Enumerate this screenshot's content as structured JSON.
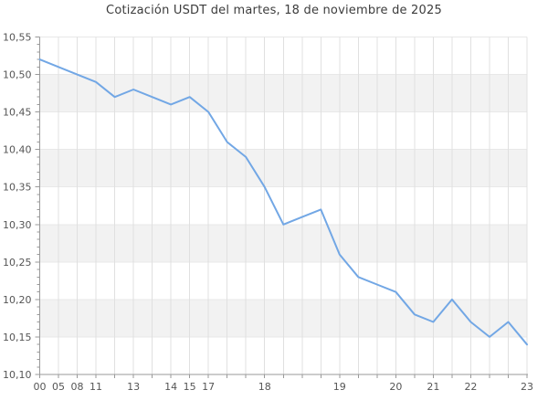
{
  "chart_data": {
    "type": "line",
    "title": "Cotización USDT del martes, 18 de noviembre de 2025",
    "series_name": "USDT",
    "x_tick_labels": [
      "00",
      "05",
      "08",
      "11",
      "",
      "13",
      "",
      "14",
      "15",
      "17",
      "",
      "",
      "18",
      "",
      "",
      "",
      "19",
      "",
      "",
      "20",
      "",
      "21",
      "",
      "22",
      "",
      "",
      "23"
    ],
    "values": [
      10.52,
      10.51,
      10.5,
      10.49,
      10.47,
      10.48,
      10.47,
      10.46,
      10.47,
      10.45,
      10.41,
      10.39,
      10.35,
      10.3,
      10.31,
      10.32,
      10.26,
      10.23,
      10.22,
      10.21,
      10.18,
      10.17,
      10.2,
      10.17,
      10.15,
      10.17,
      10.14
    ],
    "ylim": [
      10.1,
      10.55
    ],
    "y_tick_step": 0.05,
    "y_minor_tick_step": 0.01,
    "y_decimal_separator": ",",
    "grid": true,
    "legend": false,
    "band_fill_alternating": true,
    "colors": {
      "line": "#72a7e5",
      "band": "#f2f2f2",
      "grid_vertical": "#e0e0e0",
      "grid_horizontal": "#e8e8e8",
      "axis": "#9a9a9a",
      "tick": "#9a9a9a",
      "tick_label": "#555555",
      "title": "#3c3c3c",
      "background": "#ffffff"
    }
  }
}
